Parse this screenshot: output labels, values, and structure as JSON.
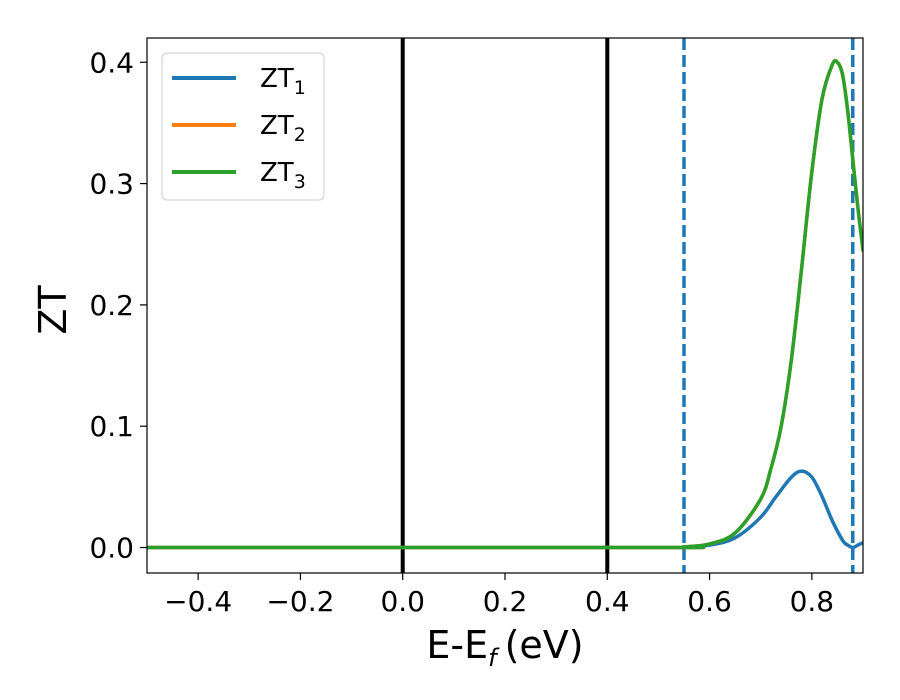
{
  "chart_data": {
    "type": "line",
    "xlabel": "E-E",
    "xlabel_sub": "f",
    "xlabel_unit": "(eV)",
    "ylabel": "ZT",
    "xlim": [
      -0.5,
      0.9
    ],
    "ylim": [
      -0.021,
      0.42
    ],
    "xticks": [
      -0.4,
      -0.2,
      0.0,
      0.2,
      0.4,
      0.6,
      0.8
    ],
    "xtick_labels": [
      "−0.4",
      "−0.2",
      "0.0",
      "0.2",
      "0.4",
      "0.6",
      "0.8"
    ],
    "yticks": [
      0.0,
      0.1,
      0.2,
      0.3,
      0.4
    ],
    "ytick_labels": [
      "0.0",
      "0.1",
      "0.2",
      "0.3",
      "0.4"
    ],
    "grid": false,
    "legend_position": "upper-left",
    "vertical_lines": [
      {
        "x": 0.0,
        "style": "solid",
        "color": "#000000"
      },
      {
        "x": 0.4,
        "style": "solid",
        "color": "#000000"
      },
      {
        "x": 0.55,
        "style": "dashed",
        "color": "#1f77b4"
      },
      {
        "x": 0.88,
        "style": "dashed",
        "color": "#1f77b4"
      }
    ],
    "series": [
      {
        "name": "ZT",
        "name_sub": "1",
        "color": "#1f77b4",
        "x": [
          -0.5,
          0.5,
          0.55,
          0.6,
          0.65,
          0.7,
          0.73,
          0.76,
          0.78,
          0.8,
          0.82,
          0.84,
          0.86,
          0.87,
          0.88,
          0.89,
          0.9
        ],
        "y": [
          0.0,
          0.0,
          0.0005,
          0.002,
          0.008,
          0.025,
          0.042,
          0.058,
          0.063,
          0.058,
          0.042,
          0.022,
          0.006,
          0.002,
          0.0,
          0.002,
          0.004
        ]
      },
      {
        "name": "ZT",
        "name_sub": "2",
        "color": "#ff7f0e",
        "x": [
          -0.5,
          0.5,
          0.55,
          0.6,
          0.65,
          0.7,
          0.72,
          0.74,
          0.76,
          0.78,
          0.8,
          0.82,
          0.84,
          0.85,
          0.86,
          0.87,
          0.88,
          0.89,
          0.9
        ],
        "y": [
          0.0,
          0.0,
          0.0005,
          0.003,
          0.012,
          0.04,
          0.065,
          0.1,
          0.155,
          0.23,
          0.31,
          0.37,
          0.398,
          0.4,
          0.39,
          0.36,
          0.32,
          0.28,
          0.245
        ]
      },
      {
        "name": "ZT",
        "name_sub": "3",
        "color": "#2ca02c",
        "x": [
          -0.5,
          0.5,
          0.55,
          0.6,
          0.65,
          0.7,
          0.72,
          0.74,
          0.76,
          0.78,
          0.8,
          0.82,
          0.84,
          0.85,
          0.86,
          0.87,
          0.88,
          0.89,
          0.9
        ],
        "y": [
          0.0,
          0.0,
          0.0005,
          0.003,
          0.012,
          0.04,
          0.065,
          0.1,
          0.155,
          0.23,
          0.31,
          0.37,
          0.398,
          0.4,
          0.39,
          0.36,
          0.32,
          0.28,
          0.245
        ]
      }
    ]
  }
}
